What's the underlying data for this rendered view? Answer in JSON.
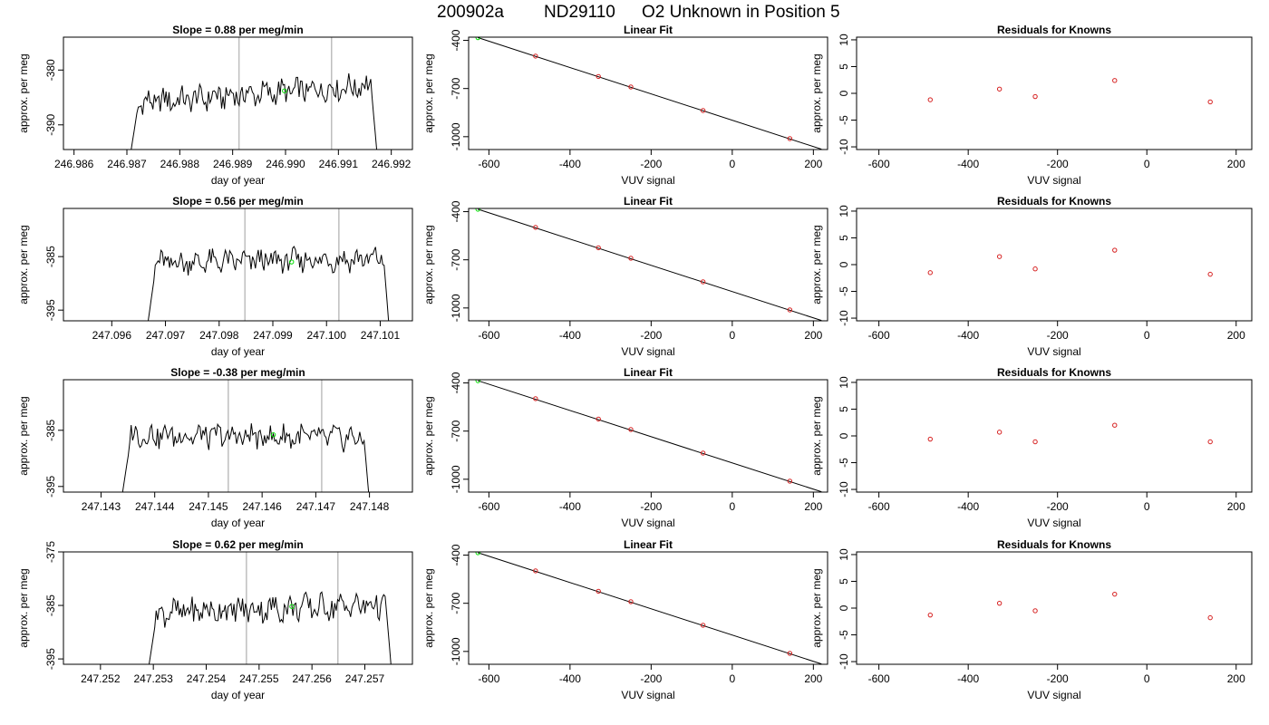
{
  "title": {
    "run": "200902a",
    "cylinder": "ND29110",
    "description": "O2 Unknown in Position  5"
  },
  "colors": {
    "trace": "#000000",
    "marker_lines": "#bebebe",
    "unknown": "#00e000",
    "knowns": "#d62020",
    "fit": "#000000"
  },
  "chart_data": [
    {
      "type": "line",
      "panel": "time-series",
      "row": 1,
      "title": "Slope =  0.88  per meg/min",
      "xlabel": "day of year",
      "ylabel": "approx. per meg",
      "xlim": [
        246.9858,
        246.9924
      ],
      "ylim": [
        -394.5,
        -374
      ],
      "xticks": [
        "246.986",
        "246.987",
        "246.988",
        "246.989",
        "246.990",
        "246.991",
        "246.992"
      ],
      "yticks": [
        "-380",
        "-390"
      ],
      "ytick_values": [
        -380,
        -390
      ],
      "trace_start": 246.98705,
      "trace_end": 246.99175,
      "trace_mean": -384.4,
      "trace_trend": 3.5,
      "trace_amplitude": 2.0,
      "vlines": [
        246.98912,
        246.99087
      ],
      "unknown_point": {
        "x": 246.98998,
        "y": -383.8
      }
    },
    {
      "type": "line",
      "panel": "time-series",
      "row": 2,
      "title": "Slope =  0.56  per meg/min",
      "xlabel": "day of year",
      "ylabel": "approx. per meg",
      "xlim": [
        247.0951,
        247.1016
      ],
      "ylim": [
        -397,
        -376
      ],
      "xticks": [
        "247.096",
        "247.097",
        "247.098",
        "247.099",
        "247.100",
        "247.101"
      ],
      "yticks": [
        "-385",
        "-395"
      ],
      "ytick_values": [
        -385,
        -395
      ],
      "trace_start": 247.09665,
      "trace_end": 247.10118,
      "trace_mean": -385.8,
      "trace_trend": 0.8,
      "trace_amplitude": 1.9,
      "vlines": [
        247.09848,
        247.10023
      ],
      "unknown_point": {
        "x": 247.09935,
        "y": -386.0
      }
    },
    {
      "type": "line",
      "panel": "time-series",
      "row": 3,
      "title": "Slope =  -0.38  per meg/min",
      "xlabel": "day of year",
      "ylabel": "approx. per meg",
      "xlim": [
        247.1423,
        247.1488
      ],
      "ylim": [
        -396,
        -376
      ],
      "xticks": [
        "247.143",
        "247.144",
        "247.145",
        "247.146",
        "247.147",
        "247.148"
      ],
      "yticks": [
        "-385",
        "-395"
      ],
      "ytick_values": [
        -385,
        -395
      ],
      "trace_start": 247.14337,
      "trace_end": 247.14801,
      "trace_mean": -386.1,
      "trace_trend": -0.6,
      "trace_amplitude": 1.9,
      "vlines": [
        247.14537,
        247.14711
      ],
      "unknown_point": {
        "x": 247.14621,
        "y": -385.8
      }
    },
    {
      "type": "line",
      "panel": "time-series",
      "row": 4,
      "title": "Slope =  0.62  per meg/min",
      "xlabel": "day of year",
      "ylabel": "approx. per meg",
      "xlim": [
        247.2513,
        247.2579
      ],
      "ylim": [
        -396,
        -375
      ],
      "xticks": [
        "247.252",
        "247.253",
        "247.254",
        "247.255",
        "247.256",
        "247.257"
      ],
      "yticks": [
        "-375",
        "-385",
        "-395"
      ],
      "ytick_values": [
        -375,
        -385,
        -395
      ],
      "trace_start": 247.25289,
      "trace_end": 247.25752,
      "trace_mean": -385.6,
      "trace_trend": 1.6,
      "trace_amplitude": 2.2,
      "vlines": [
        247.25476,
        247.25649
      ],
      "unknown_point": {
        "x": 247.25562,
        "y": -385.2
      }
    },
    {
      "type": "scatter",
      "panel": "linear-fit",
      "row": 1,
      "title": "Linear Fit",
      "xlabel": "VUV signal",
      "ylabel": "approx. per meg",
      "xlim": [
        -650,
        235
      ],
      "ylim": [
        -1080,
        -380
      ],
      "xticks": [
        "-600",
        "-400",
        "-200",
        "0",
        "200"
      ],
      "xtick_values": [
        -600,
        -400,
        -200,
        0,
        200
      ],
      "yticks": [
        "-400",
        "-700",
        "-1000"
      ],
      "ytick_values": [
        -400,
        -700,
        -1000
      ],
      "fit_line": {
        "x": [
          -627,
          220
        ],
        "y": [
          -383,
          -1078
        ]
      },
      "knowns": {
        "x": [
          -485,
          -330,
          -250,
          -72,
          142
        ],
        "y": [
          -498,
          -625,
          -690,
          -837,
          -1012
        ]
      },
      "unknown": {
        "x": -627,
        "y": -383
      }
    },
    {
      "type": "scatter",
      "panel": "linear-fit",
      "row": 2,
      "title": "Linear Fit",
      "xlabel": "VUV signal",
      "ylabel": "approx. per meg",
      "xlim": [
        -650,
        235
      ],
      "ylim": [
        -1080,
        -380
      ],
      "xticks": [
        "-600",
        "-400",
        "-200",
        "0",
        "200"
      ],
      "xtick_values": [
        -600,
        -400,
        -200,
        0,
        200
      ],
      "yticks": [
        "-400",
        "-700",
        "-1000"
      ],
      "ytick_values": [
        -400,
        -700,
        -1000
      ],
      "fit_line": {
        "x": [
          -627,
          220
        ],
        "y": [
          -385,
          -1078
        ]
      },
      "knowns": {
        "x": [
          -485,
          -330,
          -250,
          -72,
          142
        ],
        "y": [
          -498,
          -625,
          -690,
          -837,
          -1012
        ]
      },
      "unknown": {
        "x": -627,
        "y": -385
      }
    },
    {
      "type": "scatter",
      "panel": "linear-fit",
      "row": 3,
      "title": "Linear Fit",
      "xlabel": "VUV signal",
      "ylabel": "approx. per meg",
      "xlim": [
        -650,
        235
      ],
      "ylim": [
        -1080,
        -380
      ],
      "xticks": [
        "-600",
        "-400",
        "-200",
        "0",
        "200"
      ],
      "xtick_values": [
        -600,
        -400,
        -200,
        0,
        200
      ],
      "yticks": [
        "-400",
        "-700",
        "-1000"
      ],
      "ytick_values": [
        -400,
        -700,
        -1000
      ],
      "fit_line": {
        "x": [
          -627,
          220
        ],
        "y": [
          -386,
          -1078
        ]
      },
      "knowns": {
        "x": [
          -485,
          -330,
          -250,
          -72,
          142
        ],
        "y": [
          -498,
          -625,
          -690,
          -837,
          -1012
        ]
      },
      "unknown": {
        "x": -627,
        "y": -386
      }
    },
    {
      "type": "scatter",
      "panel": "linear-fit",
      "row": 4,
      "title": "Linear Fit",
      "xlabel": "VUV signal",
      "ylabel": "approx. per meg",
      "xlim": [
        -650,
        235
      ],
      "ylim": [
        -1080,
        -380
      ],
      "xticks": [
        "-600",
        "-400",
        "-200",
        "0",
        "200"
      ],
      "xtick_values": [
        -600,
        -400,
        -200,
        0,
        200
      ],
      "yticks": [
        "-400",
        "-700",
        "-1000"
      ],
      "ytick_values": [
        -400,
        -700,
        -1000
      ],
      "fit_line": {
        "x": [
          -627,
          220
        ],
        "y": [
          -385,
          -1078
        ]
      },
      "knowns": {
        "x": [
          -485,
          -330,
          -250,
          -72,
          142
        ],
        "y": [
          -498,
          -625,
          -690,
          -837,
          -1012
        ]
      },
      "unknown": {
        "x": -627,
        "y": -385
      }
    },
    {
      "type": "scatter",
      "panel": "residuals",
      "row": 1,
      "title": "Residuals for Knowns",
      "xlabel": "VUV signal",
      "ylabel": "approx. per meg",
      "xlim": [
        -650,
        235
      ],
      "ylim": [
        -10.5,
        10.5
      ],
      "xticks": [
        "-600",
        "-400",
        "-200",
        "0",
        "200"
      ],
      "xtick_values": [
        -600,
        -400,
        -200,
        0,
        200
      ],
      "yticks": [
        "-10",
        "-5",
        "0",
        "5",
        "10"
      ],
      "ytick_values": [
        -10,
        -5,
        0,
        5,
        10
      ],
      "points": {
        "x": [
          -485,
          -330,
          -250,
          -72,
          142
        ],
        "y": [
          -1.2,
          0.8,
          -0.6,
          2.4,
          -1.6
        ]
      }
    },
    {
      "type": "scatter",
      "panel": "residuals",
      "row": 2,
      "title": "Residuals for Knowns",
      "xlabel": "VUV signal",
      "ylabel": "approx. per meg",
      "xlim": [
        -650,
        235
      ],
      "ylim": [
        -10.5,
        10.5
      ],
      "xticks": [
        "-600",
        "-400",
        "-200",
        "0",
        "200"
      ],
      "xtick_values": [
        -600,
        -400,
        -200,
        0,
        200
      ],
      "yticks": [
        "-10",
        "-5",
        "0",
        "5",
        "10"
      ],
      "ytick_values": [
        -10,
        -5,
        0,
        5,
        10
      ],
      "points": {
        "x": [
          -485,
          -330,
          -250,
          -72,
          142
        ],
        "y": [
          -1.5,
          1.5,
          -0.8,
          2.7,
          -1.8
        ]
      }
    },
    {
      "type": "scatter",
      "panel": "residuals",
      "row": 3,
      "title": "Residuals for Knowns",
      "xlabel": "VUV signal",
      "ylabel": "approx. per meg",
      "xlim": [
        -650,
        235
      ],
      "ylim": [
        -10.5,
        10.5
      ],
      "xticks": [
        "-600",
        "-400",
        "-200",
        "0",
        "200"
      ],
      "xtick_values": [
        -600,
        -400,
        -200,
        0,
        200
      ],
      "yticks": [
        "-10",
        "-5",
        "0",
        "5",
        "10"
      ],
      "ytick_values": [
        -10,
        -5,
        0,
        5,
        10
      ],
      "points": {
        "x": [
          -485,
          -330,
          -250,
          -72,
          142
        ],
        "y": [
          -0.6,
          0.7,
          -1.1,
          2.0,
          -1.1
        ]
      }
    },
    {
      "type": "scatter",
      "panel": "residuals",
      "row": 4,
      "title": "Residuals for Knowns",
      "xlabel": "VUV signal",
      "ylabel": "approx. per meg",
      "xlim": [
        -650,
        235
      ],
      "ylim": [
        -10.5,
        10.5
      ],
      "xticks": [
        "-600",
        "-400",
        "-200",
        "0",
        "200"
      ],
      "xtick_values": [
        -600,
        -400,
        -200,
        0,
        200
      ],
      "yticks": [
        "-10",
        "-5",
        "0",
        "5",
        "10"
      ],
      "ytick_values": [
        -10,
        -5,
        0,
        5,
        10
      ],
      "points": {
        "x": [
          -485,
          -330,
          -250,
          -72,
          142
        ],
        "y": [
          -1.3,
          0.9,
          -0.5,
          2.6,
          -1.8
        ]
      }
    }
  ]
}
